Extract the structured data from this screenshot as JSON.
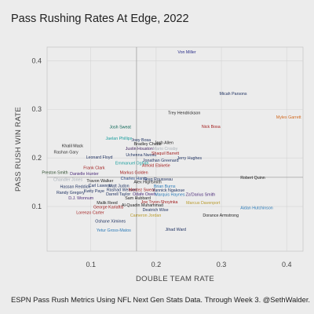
{
  "chart_data": {
    "type": "scatter",
    "title": "Pass Rushing Rates At Edge, 2022",
    "caption": "ESPN Pass Rush Metrics Using NFL Next Gen Stats Data. Through Week 3. @SethWalder.",
    "xlabel": "DOUBLE TEAM RATE",
    "ylabel": "PASS RUSH WIN RATE",
    "xlim": [
      0.033,
      0.425
    ],
    "ylim": [
      0.008,
      0.428
    ],
    "x_ticks": [
      0.1,
      0.2,
      0.3,
      0.4
    ],
    "y_ticks": [
      0.1,
      0.2,
      0.3,
      0.4
    ],
    "x_tick_labels": [
      "0.1",
      "0.2",
      "0.3",
      "0.4"
    ],
    "y_tick_labels": [
      "0.1",
      "0.2",
      "0.3",
      "0.4"
    ],
    "reference_lines": {
      "x": 0.17,
      "y": 0.16
    },
    "grid": true,
    "points": [
      {
        "name": "Von Miller",
        "x": 0.247,
        "y": 0.418,
        "color": "#2b2f8a"
      },
      {
        "name": "Micah Parsons",
        "x": 0.318,
        "y": 0.333,
        "color": "#1a2d5e"
      },
      {
        "name": "Trey Hendrickson",
        "x": 0.243,
        "y": 0.293,
        "color": "#222222"
      },
      {
        "name": "Myles Garrett",
        "x": 0.403,
        "y": 0.284,
        "color": "#d2691e"
      },
      {
        "name": "Nick Bosa",
        "x": 0.284,
        "y": 0.265,
        "color": "#a32020"
      },
      {
        "name": "Josh Sweat",
        "x": 0.145,
        "y": 0.264,
        "color": "#005f4e"
      },
      {
        "name": "Jaelan Phillips",
        "x": 0.143,
        "y": 0.241,
        "color": "#1a9e9e"
      },
      {
        "name": "Joey Bosa",
        "x": 0.177,
        "y": 0.237,
        "color": "#1a2d5e"
      },
      {
        "name": "Josh Allen",
        "x": 0.212,
        "y": 0.232,
        "color": "#222222"
      },
      {
        "name": "Bradley Chubb",
        "x": 0.187,
        "y": 0.229,
        "color": "#222222"
      },
      {
        "name": "Khalil Mack",
        "x": 0.072,
        "y": 0.225,
        "color": "#222222"
      },
      {
        "name": "Justin Houston",
        "x": 0.174,
        "y": 0.22,
        "color": "#3f1d5c"
      },
      {
        "name": "Mario Crosby",
        "x": 0.214,
        "y": 0.22,
        "color": "#a8b0b8"
      },
      {
        "name": "Rashan Gary",
        "x": 0.062,
        "y": 0.212,
        "color": "#333333"
      },
      {
        "name": "Uchenna Nwosu",
        "x": 0.177,
        "y": 0.207,
        "color": "#1a2d5e"
      },
      {
        "name": "Shaquil Barrett",
        "x": 0.214,
        "y": 0.21,
        "color": "#a32020"
      },
      {
        "name": "Leonard Floyd",
        "x": 0.113,
        "y": 0.202,
        "color": "#1a2d5e"
      },
      {
        "name": "Jerry Hughes",
        "x": 0.251,
        "y": 0.2,
        "color": "#1a2d5e"
      },
      {
        "name": "Jonathan Greenard",
        "x": 0.207,
        "y": 0.195,
        "color": "#1a2d5e"
      },
      {
        "name": "Emmanuel Ogbah",
        "x": 0.163,
        "y": 0.19,
        "color": "#1a9e9e"
      },
      {
        "name": "Arnold Ebiketie",
        "x": 0.2,
        "y": 0.185,
        "color": "#a32020"
      },
      {
        "name": "Frank Clark",
        "x": 0.105,
        "y": 0.18,
        "color": "#a32020"
      },
      {
        "name": "Preston Smith",
        "x": 0.045,
        "y": 0.17,
        "color": "#2b4a2b"
      },
      {
        "name": "Danielle Hunter",
        "x": 0.09,
        "y": 0.168,
        "color": "#4b2b7a"
      },
      {
        "name": "Markus Golden",
        "x": 0.166,
        "y": 0.17,
        "color": "#a32020"
      },
      {
        "name": "Robert Quinn",
        "x": 0.348,
        "y": 0.16,
        "color": "#222222"
      },
      {
        "name": "Chandler Jones",
        "x": 0.065,
        "y": 0.156,
        "color": "#a8b0b8"
      },
      {
        "name": "Charles Harris",
        "x": 0.166,
        "y": 0.158,
        "color": "#2b4a8a"
      },
      {
        "name": "Greg Rousseau",
        "x": 0.203,
        "y": 0.157,
        "color": "#1a2d5e"
      },
      {
        "name": "Travon Walker",
        "x": 0.114,
        "y": 0.153,
        "color": "#222222"
      },
      {
        "name": "Alex Highsmith",
        "x": 0.187,
        "y": 0.151,
        "color": "#222222"
      },
      {
        "name": "Carl Lawson",
        "x": 0.114,
        "y": 0.144,
        "color": "#1a2d5e"
      },
      {
        "name": "Matt Judon",
        "x": 0.143,
        "y": 0.143,
        "color": "#1a2d5e"
      },
      {
        "name": "Brian Burns",
        "x": 0.213,
        "y": 0.142,
        "color": "#2b7ab8"
      },
      {
        "name": "Hassan Reddick",
        "x": 0.076,
        "y": 0.141,
        "color": "#1a2d5e"
      },
      {
        "name": "Rashad Weaver",
        "x": 0.147,
        "y": 0.135,
        "color": "#1a2d5e"
      },
      {
        "name": "Montez Sweat",
        "x": 0.178,
        "y": 0.135,
        "color": "#a32020"
      },
      {
        "name": "Yannick Ngakoue",
        "x": 0.219,
        "y": 0.134,
        "color": "#1a2d5e"
      },
      {
        "name": "Kwity Paye",
        "x": 0.105,
        "y": 0.132,
        "color": "#1a2d5e"
      },
      {
        "name": "Randy Gregory",
        "x": 0.069,
        "y": 0.129,
        "color": "#1a2d5e"
      },
      {
        "name": "Darrell Taylor",
        "x": 0.142,
        "y": 0.126,
        "color": "#1a2d5e"
      },
      {
        "name": "Odafe Oweh",
        "x": 0.182,
        "y": 0.126,
        "color": "#4b2b7a"
      },
      {
        "name": "Marquis Haynes",
        "x": 0.221,
        "y": 0.125,
        "color": "#2b7ab8"
      },
      {
        "name": "Za'Darius Smith",
        "x": 0.268,
        "y": 0.125,
        "color": "#4b2b7a"
      },
      {
        "name": "Sam Hubbard",
        "x": 0.172,
        "y": 0.118,
        "color": "#222222"
      },
      {
        "name": "D.J. Wonnum",
        "x": 0.085,
        "y": 0.118,
        "color": "#4b2b7a"
      },
      {
        "name": "Joe Tryon-Shoyinka",
        "x": 0.205,
        "y": 0.11,
        "color": "#a32020"
      },
      {
        "name": "Malik Reed",
        "x": 0.125,
        "y": 0.108,
        "color": "#222222"
      },
      {
        "name": "Al-Quadin Muhammad",
        "x": 0.179,
        "y": 0.103,
        "color": "#222222"
      },
      {
        "name": "Marcus Davenport",
        "x": 0.272,
        "y": 0.108,
        "color": "#b89a2b"
      },
      {
        "name": "George Karlaftis",
        "x": 0.127,
        "y": 0.099,
        "color": "#a32020"
      },
      {
        "name": "Aidan Hutchinson",
        "x": 0.354,
        "y": 0.098,
        "color": "#2b7ab8"
      },
      {
        "name": "Deatrich Wise",
        "x": 0.199,
        "y": 0.094,
        "color": "#1a2d5e"
      },
      {
        "name": "Lorenzo Carter",
        "x": 0.099,
        "y": 0.088,
        "color": "#a32020"
      },
      {
        "name": "Cameron Jordan",
        "x": 0.184,
        "y": 0.082,
        "color": "#b89a2b"
      },
      {
        "name": "Dorance Armstrong",
        "x": 0.299,
        "y": 0.082,
        "color": "#222222"
      },
      {
        "name": "Oshane Ximines",
        "x": 0.13,
        "y": 0.07,
        "color": "#1a2d5e"
      },
      {
        "name": "Yetur Gross-Matos",
        "x": 0.135,
        "y": 0.052,
        "color": "#2b7ab8"
      },
      {
        "name": "Jihad Ward",
        "x": 0.23,
        "y": 0.053,
        "color": "#1a2d5e"
      }
    ]
  }
}
